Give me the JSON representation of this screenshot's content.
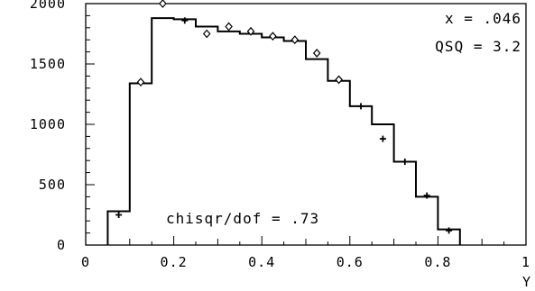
{
  "chart_data": {
    "type": "step",
    "title": "",
    "xlabel": "Y",
    "ylabel": "",
    "xlim": [
      0,
      1
    ],
    "ylim": [
      0,
      2000
    ],
    "x_ticks": [
      {
        "value": 0,
        "label": "0"
      },
      {
        "value": 0.2,
        "label": "0.2"
      },
      {
        "value": 0.4,
        "label": "0.4"
      },
      {
        "value": 0.6,
        "label": "0.6"
      },
      {
        "value": 0.8,
        "label": "0.8"
      },
      {
        "value": 1,
        "label": "1"
      }
    ],
    "y_ticks": [
      {
        "value": 0,
        "label": "0"
      },
      {
        "value": 500,
        "label": "500"
      },
      {
        "value": 1000,
        "label": "1000"
      },
      {
        "value": 1500,
        "label": "1500"
      },
      {
        "value": 2000,
        "label": "2000"
      }
    ],
    "annotations": [
      "x = .046",
      "QSQ = 3.2",
      "chisqr/dof = .73"
    ],
    "histogram": {
      "bin_edges": [
        0.05,
        0.1,
        0.15,
        0.2,
        0.25,
        0.3,
        0.35,
        0.4,
        0.45,
        0.5,
        0.55,
        0.6,
        0.65,
        0.7,
        0.75,
        0.8,
        0.85
      ],
      "values": [
        280,
        1340,
        1880,
        1870,
        1810,
        1770,
        1750,
        1720,
        1690,
        1540,
        1360,
        1150,
        1000,
        690,
        400,
        130
      ]
    },
    "points": {
      "x": [
        0.075,
        0.125,
        0.175,
        0.225,
        0.275,
        0.325,
        0.375,
        0.425,
        0.475,
        0.525,
        0.575,
        0.625,
        0.675,
        0.725,
        0.775,
        0.825
      ],
      "y": [
        250,
        1350,
        2000,
        1860,
        1750,
        1810,
        1770,
        1730,
        1700,
        1590,
        1370,
        1150,
        880,
        690,
        410,
        120
      ],
      "markers": [
        "plus",
        "diamond",
        "diamond",
        "plus",
        "diamond",
        "diamond",
        "diamond",
        "diamond",
        "diamond",
        "diamond",
        "diamond",
        "plus",
        "plus",
        "plus",
        "plus",
        "plus"
      ]
    }
  }
}
